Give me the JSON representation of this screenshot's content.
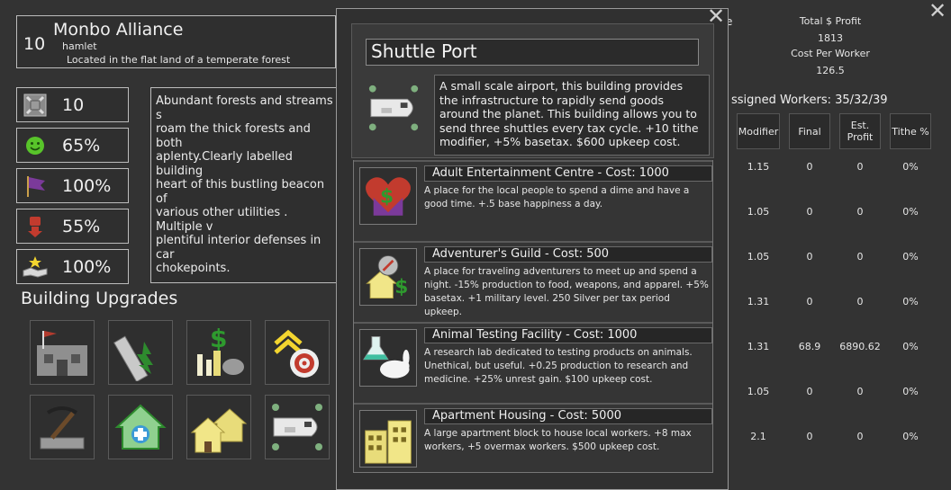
{
  "settlement": {
    "level": "10",
    "name": "Monbo Alliance",
    "type": "hamlet",
    "location": "Located in the flat land of a temperate forest"
  },
  "stats": [
    {
      "icon": "military-shield-icon",
      "value": "10"
    },
    {
      "icon": "happiness-smiley-icon",
      "value": "65%"
    },
    {
      "icon": "loyalty-flag-icon",
      "value": "100%"
    },
    {
      "icon": "unrest-fist-icon",
      "value": "55%"
    },
    {
      "icon": "cooperation-handshake-icon",
      "value": "100%"
    }
  ],
  "description": "Abundant forests and streams s\nroam the thick forests and both\naplenty.Clearly labelled building\nheart of this bustling beacon of\nvarious other utilities . Multiple v\nplentiful interior defenses in car\nchokepoints.",
  "upgrades_title": "Building Upgrades",
  "upgrades": [
    {
      "icon": "town-hall-flag-icon"
    },
    {
      "icon": "lumber-saw-icon"
    },
    {
      "icon": "market-money-icon"
    },
    {
      "icon": "training-target-icon"
    },
    {
      "icon": "mine-pickaxe-icon"
    },
    {
      "icon": "hospital-house-icon"
    },
    {
      "icon": "housing-houses-icon"
    },
    {
      "icon": "shuttle-icon"
    }
  ],
  "right_panel": {
    "total_profit_label": "Total $ Profit",
    "total_profit": "1813",
    "cost_per_worker_label": "Cost Per Worker",
    "cost_per_worker": "126.5",
    "edge_char": "e",
    "assigned_workers": "ssigned Workers: 35/32/39",
    "columns": [
      "Modifier",
      "Final",
      "Est. Profit",
      "Tithe %"
    ],
    "rows": [
      [
        "1.15",
        "0",
        "0",
        "0%"
      ],
      [
        "1.05",
        "0",
        "0",
        "0%"
      ],
      [
        "1.05",
        "0",
        "0",
        "0%"
      ],
      [
        "1.31",
        "0",
        "0",
        "0%"
      ],
      [
        "1.31",
        "68.9",
        "6890.62",
        "0%"
      ],
      [
        "1.05",
        "0",
        "0",
        "0%"
      ],
      [
        "2.1",
        "0",
        "0",
        "0%"
      ]
    ]
  },
  "modal": {
    "title": "Shuttle Port",
    "description": "A small scale airport, this building provides the infrastructure to rapidly send goods around the planet. This building allows you to send three shuttles every tax cycle. +10 tithe modifier, +5% basetax. $600 upkeep cost.",
    "items": [
      {
        "icon": "heart-money-icon",
        "title": "Adult Entertainment Centre - Cost: 1000",
        "text": "A place for the local people to spend a dime and have a good time. +.5 base happiness a day."
      },
      {
        "icon": "compass-guild-icon",
        "title": "Adventurer's Guild - Cost: 500",
        "text": "A place for traveling adventurers to meet up and spend a night. -15% production to food, weapons, and apparel. +5% basetax. +1 military level. 250 Silver per tax period upkeep."
      },
      {
        "icon": "flask-rabbit-icon",
        "title": "Animal Testing Facility - Cost: 1000",
        "text": "A research lab dedicated to testing products on animals. Unethical, but useful. +0.25 production to research and medicine. +25% unrest gain. $100 upkeep cost."
      },
      {
        "icon": "apartment-buildings-icon",
        "title": "Apartment Housing - Cost: 5000",
        "text": "A large apartment block to house local workers. +8 max workers, +5 overmax workers. $500 upkeep cost."
      }
    ]
  },
  "colors": {
    "background": "#333333",
    "panel": "#2f2f2f",
    "border": "#bdbdbd",
    "accent_green": "#2e8b2e",
    "accent_yellow": "#e8dc7a"
  }
}
